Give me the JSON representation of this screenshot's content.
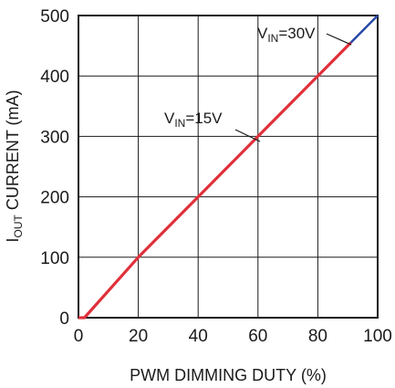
{
  "chart_data": {
    "type": "line",
    "title": "",
    "xlabel": "PWM DIMMING DUTY (%)",
    "ylabel": {
      "main": "I",
      "sub": "OUT",
      "rest": " CURRENT (mA)"
    },
    "xlim": [
      0,
      100
    ],
    "ylim": [
      0,
      500
    ],
    "xticks": [
      0,
      20,
      40,
      60,
      80,
      100
    ],
    "yticks": [
      0,
      100,
      200,
      300,
      400,
      500
    ],
    "xtick_labels": [
      "0",
      "20",
      "40",
      "60",
      "80",
      "100"
    ],
    "ytick_labels": [
      "0",
      "100",
      "200",
      "300",
      "400",
      "500"
    ],
    "grid": true,
    "series": [
      {
        "name": "VIN=30V",
        "color": "#2b4aa8",
        "x": [
          0,
          2,
          20,
          40,
          60,
          80,
          100
        ],
        "y": [
          0,
          0,
          100,
          200,
          300,
          400,
          500
        ]
      },
      {
        "name": "VIN=15V",
        "color": "#e0303a",
        "x": [
          0,
          2,
          20,
          40,
          60,
          80,
          91
        ],
        "y": [
          0,
          0,
          100,
          200,
          300,
          400,
          455
        ]
      }
    ],
    "annotations": [
      {
        "main": "V",
        "sub": "IN",
        "rest": "=30V",
        "series": 0
      },
      {
        "main": "V",
        "sub": "IN",
        "rest": "=15V",
        "series": 1
      }
    ]
  }
}
